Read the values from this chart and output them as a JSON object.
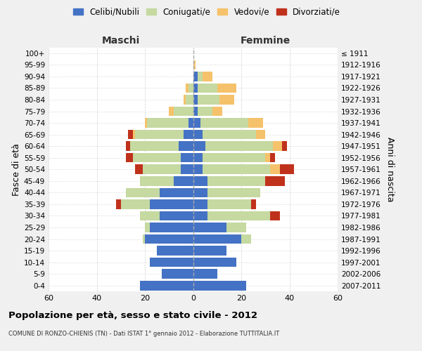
{
  "age_groups": [
    "0-4",
    "5-9",
    "10-14",
    "15-19",
    "20-24",
    "25-29",
    "30-34",
    "35-39",
    "40-44",
    "45-49",
    "50-54",
    "55-59",
    "60-64",
    "65-69",
    "70-74",
    "75-79",
    "80-84",
    "85-89",
    "90-94",
    "95-99",
    "100+"
  ],
  "birth_years": [
    "2007-2011",
    "2002-2006",
    "1997-2001",
    "1992-1996",
    "1987-1991",
    "1982-1986",
    "1977-1981",
    "1972-1976",
    "1967-1971",
    "1962-1966",
    "1957-1961",
    "1952-1956",
    "1947-1951",
    "1942-1946",
    "1937-1941",
    "1932-1936",
    "1927-1931",
    "1922-1926",
    "1917-1921",
    "1912-1916",
    "≤ 1911"
  ],
  "male_celibi": [
    22,
    13,
    18,
    15,
    20,
    18,
    14,
    18,
    14,
    8,
    5,
    5,
    6,
    4,
    2,
    0,
    0,
    0,
    0,
    0,
    0
  ],
  "male_coniugati": [
    0,
    0,
    0,
    0,
    1,
    2,
    8,
    12,
    14,
    14,
    16,
    20,
    20,
    20,
    17,
    8,
    3,
    2,
    0,
    0,
    0
  ],
  "male_vedovi": [
    0,
    0,
    0,
    0,
    0,
    0,
    0,
    0,
    0,
    0,
    0,
    0,
    0,
    1,
    1,
    2,
    1,
    1,
    0,
    0,
    0
  ],
  "male_divorziati": [
    0,
    0,
    0,
    0,
    0,
    0,
    0,
    2,
    0,
    0,
    3,
    3,
    2,
    2,
    0,
    0,
    0,
    0,
    0,
    0,
    0
  ],
  "female_nubili": [
    22,
    10,
    18,
    14,
    20,
    14,
    6,
    6,
    6,
    6,
    4,
    4,
    5,
    4,
    3,
    2,
    2,
    2,
    2,
    0,
    0
  ],
  "female_coniugate": [
    0,
    0,
    0,
    0,
    4,
    8,
    26,
    18,
    22,
    24,
    28,
    26,
    28,
    22,
    20,
    6,
    9,
    8,
    2,
    0,
    0
  ],
  "female_vedove": [
    0,
    0,
    0,
    0,
    0,
    0,
    0,
    0,
    0,
    0,
    4,
    2,
    4,
    4,
    6,
    4,
    6,
    8,
    4,
    1,
    0
  ],
  "female_divorziate": [
    0,
    0,
    0,
    0,
    0,
    0,
    4,
    2,
    0,
    8,
    6,
    2,
    2,
    0,
    0,
    0,
    0,
    0,
    0,
    0,
    0
  ],
  "color_celibi": "#4472c4",
  "color_coniugati": "#c5d9a0",
  "color_vedovi": "#f5c26b",
  "color_divorziati": "#c0311c",
  "xlim": 60,
  "title": "Popolazione per età, sesso e stato civile - 2012",
  "subtitle": "COMUNE DI RONZO-CHIENIS (TN) - Dati ISTAT 1° gennaio 2012 - Elaborazione TUTTITALIA.IT",
  "label_maschi": "Maschi",
  "label_femmine": "Femmine",
  "ylabel_left": "Fasce di età",
  "ylabel_right": "Anni di nascita",
  "legend_labels": [
    "Celibi/Nubili",
    "Coniugati/e",
    "Vedovi/e",
    "Divorziati/e"
  ],
  "bg_color": "#f0f0f0",
  "plot_bg": "#ffffff",
  "grid_color": "#cccccc"
}
